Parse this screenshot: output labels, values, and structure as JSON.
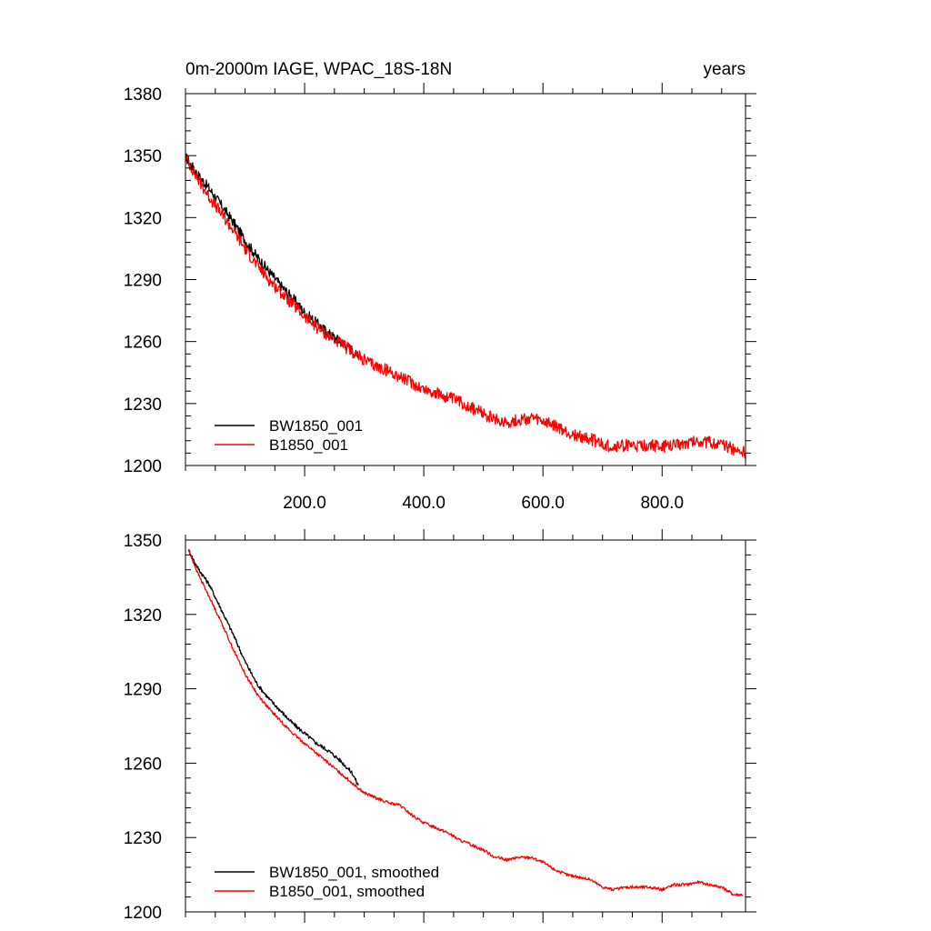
{
  "chart_data": [
    {
      "type": "line",
      "title": "0m-2000m IAGE, WPAC_18S-18N",
      "units_label": "years",
      "xlim": [
        0,
        940
      ],
      "ylim": [
        1200,
        1380
      ],
      "x_ticks": [
        200,
        400,
        600,
        800
      ],
      "x_tick_labels": [
        "200.0",
        "400.0",
        "600.0",
        "800.0"
      ],
      "y_ticks": [
        1200,
        1230,
        1260,
        1290,
        1320,
        1350,
        1380
      ],
      "y_tick_labels": [
        "1200",
        "1230",
        "1260",
        "1290",
        "1320",
        "1350",
        "1380"
      ],
      "legend_position": "bottom-left",
      "series": [
        {
          "name": "BW1850_001",
          "color": "#000000",
          "x": [
            1,
            20,
            40,
            60,
            80,
            100,
            120,
            140,
            160,
            180,
            200,
            220,
            240,
            260,
            280,
            290
          ],
          "values": [
            1349,
            1341,
            1334,
            1326,
            1318,
            1309,
            1301,
            1294,
            1287,
            1281,
            1274,
            1269,
            1264,
            1260,
            1256,
            1252
          ],
          "noise": 2.5
        },
        {
          "name": "B1850_001",
          "color": "#ff0000",
          "x": [
            1,
            20,
            40,
            60,
            80,
            100,
            120,
            140,
            160,
            180,
            200,
            220,
            240,
            260,
            280,
            300,
            320,
            340,
            360,
            380,
            400,
            420,
            440,
            460,
            480,
            500,
            520,
            540,
            560,
            580,
            600,
            620,
            640,
            660,
            680,
            700,
            720,
            740,
            760,
            780,
            800,
            820,
            840,
            860,
            880,
            900,
            920,
            940
          ],
          "values": [
            1349,
            1339,
            1330,
            1322,
            1314,
            1305,
            1297,
            1290,
            1284,
            1278,
            1272,
            1267,
            1263,
            1259,
            1255,
            1251,
            1248,
            1246,
            1243,
            1240,
            1237,
            1235,
            1233,
            1231,
            1228,
            1225,
            1222,
            1221,
            1222,
            1223,
            1221,
            1219,
            1216,
            1214,
            1213,
            1210,
            1209,
            1210,
            1209,
            1210,
            1209,
            1210,
            1211,
            1212,
            1211,
            1210,
            1208,
            1206
          ],
          "noise": 3.0
        }
      ]
    },
    {
      "type": "line",
      "title": "",
      "xlim": [
        0,
        940
      ],
      "ylim": [
        1200,
        1350
      ],
      "x_ticks": [
        200,
        400,
        600,
        800
      ],
      "x_tick_labels": [],
      "y_ticks": [
        1200,
        1230,
        1260,
        1290,
        1320,
        1350
      ],
      "y_tick_labels": [
        "1200",
        "1230",
        "1260",
        "1290",
        "1320",
        "1350"
      ],
      "legend_position": "bottom-left",
      "series": [
        {
          "name": "BW1850_001, smoothed",
          "color": "#000000",
          "x": [
            5,
            20,
            40,
            60,
            80,
            100,
            120,
            140,
            160,
            180,
            200,
            220,
            240,
            260,
            280,
            290
          ],
          "values": [
            1346,
            1339,
            1332,
            1322,
            1312,
            1301,
            1292,
            1286,
            1281,
            1276,
            1272,
            1268,
            1265,
            1261,
            1256,
            1251
          ],
          "noise": 0.8
        },
        {
          "name": "B1850_001, smoothed",
          "color": "#ff0000",
          "x": [
            5,
            20,
            40,
            60,
            80,
            100,
            120,
            140,
            160,
            180,
            200,
            220,
            240,
            260,
            280,
            300,
            320,
            340,
            360,
            380,
            400,
            420,
            440,
            460,
            480,
            500,
            520,
            540,
            560,
            580,
            600,
            620,
            640,
            660,
            680,
            700,
            720,
            740,
            760,
            780,
            800,
            820,
            840,
            860,
            880,
            900,
            920,
            935
          ],
          "values": [
            1346,
            1337,
            1327,
            1317,
            1306,
            1296,
            1288,
            1282,
            1277,
            1272,
            1268,
            1264,
            1260,
            1256,
            1252,
            1248,
            1246,
            1244,
            1243,
            1239,
            1236,
            1234,
            1232,
            1229,
            1227,
            1225,
            1222,
            1221,
            1222,
            1222,
            1220,
            1217,
            1215,
            1214,
            1213,
            1210,
            1209,
            1210,
            1210,
            1210,
            1209,
            1211,
            1211,
            1212,
            1211,
            1210,
            1207,
            1207
          ],
          "noise": 0.6
        }
      ]
    }
  ]
}
